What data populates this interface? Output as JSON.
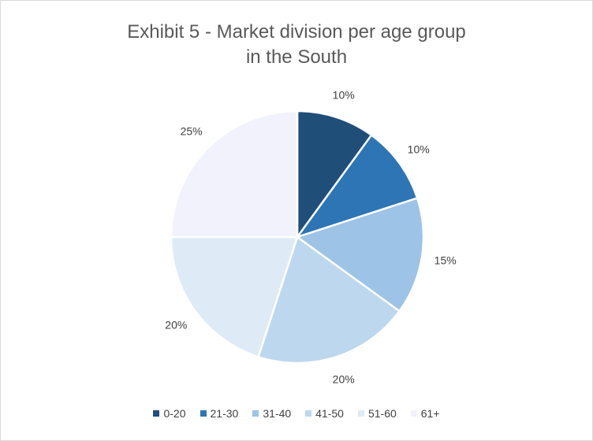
{
  "chart_data": {
    "type": "pie",
    "title": [
      "Exhibit 5 - Market division per age group",
      "in the South"
    ],
    "categories": [
      "0-20",
      "21-30",
      "31-40",
      "41-50",
      "51-60",
      "61+"
    ],
    "values": [
      10,
      10,
      15,
      20,
      20,
      25
    ],
    "data_labels": [
      "10%",
      "10%",
      "15%",
      "20%",
      "20%",
      "25%"
    ],
    "colors": [
      "#1f4e79",
      "#2e75b6",
      "#9dc3e6",
      "#bdd7ee",
      "#deebf7",
      "#f2f2fc"
    ],
    "start_angle_deg": 0,
    "direction": "clockwise",
    "legend_position": "bottom"
  }
}
